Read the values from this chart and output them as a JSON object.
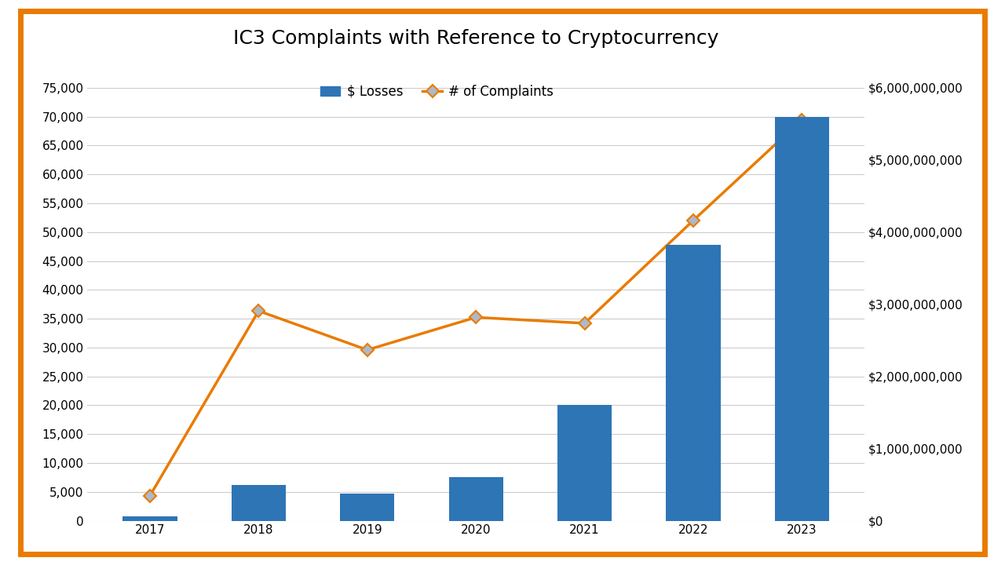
{
  "title": "IC3 Complaints with Reference to Cryptocurrency",
  "years": [
    2017,
    2018,
    2019,
    2020,
    2021,
    2022,
    2023
  ],
  "complaints": [
    4325,
    36340,
    29587,
    35229,
    34202,
    52017,
    69468
  ],
  "losses": [
    56099000,
    490000000,
    380000000,
    600000000,
    1600000000,
    3820000000,
    5600000000
  ],
  "bar_color": "#2E75B6",
  "line_color": "#E97B00",
  "marker_color": "#ADB9CA",
  "marker_edge_color": "#E97B00",
  "legend_bar_label": "$ Losses",
  "legend_line_label": "# of Complaints",
  "left_ylim": [
    0,
    80000
  ],
  "right_ylim": [
    0,
    6400000000
  ],
  "left_yticks": [
    0,
    5000,
    10000,
    15000,
    20000,
    25000,
    30000,
    35000,
    40000,
    45000,
    50000,
    55000,
    60000,
    65000,
    70000,
    75000
  ],
  "right_yticks": [
    0,
    1000000000,
    2000000000,
    3000000000,
    4000000000,
    5000000000,
    6000000000
  ],
  "background_color": "#FFFFFF",
  "border_color": "#E97B00",
  "grid_color": "#CCCCCC",
  "title_fontsize": 18,
  "tick_fontsize": 11,
  "legend_fontsize": 12
}
